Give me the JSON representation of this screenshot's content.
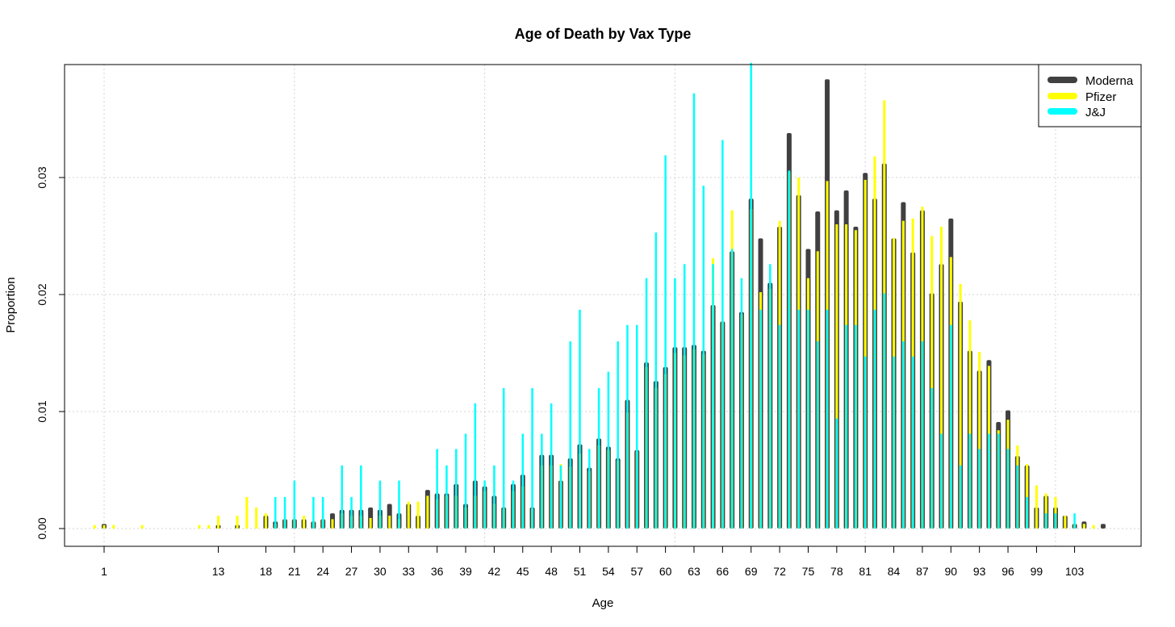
{
  "chart_data": {
    "type": "bar",
    "title": "Age of Death by  Vax Type",
    "xlabel": "Age",
    "ylabel": "Proportion",
    "ylim": [
      0.0,
      0.04
    ],
    "y_ticks": [
      0.0,
      0.01,
      0.02,
      0.03
    ],
    "y_tick_labels": [
      "0.00",
      "0.01",
      "0.02",
      "0.03"
    ],
    "x_tick_labels": [
      "1",
      "13",
      "18",
      "21",
      "24",
      "27",
      "30",
      "33",
      "36",
      "39",
      "42",
      "45",
      "48",
      "51",
      "54",
      "57",
      "60",
      "63",
      "66",
      "69",
      "72",
      "75",
      "78",
      "81",
      "84",
      "87",
      "90",
      "93",
      "96",
      "99",
      "103"
    ],
    "grid": true,
    "legend_position": "top-right",
    "series": [
      {
        "name": "Moderna",
        "color": "#404040",
        "points": [
          [
            1,
            0.0004
          ],
          [
            13,
            0.0003
          ],
          [
            15,
            0.0003
          ],
          [
            18,
            0.0011
          ],
          [
            19,
            0.0006
          ],
          [
            20,
            0.0008
          ],
          [
            21,
            0.0008
          ],
          [
            22,
            0.0008
          ],
          [
            23,
            0.0006
          ],
          [
            24,
            0.0008
          ],
          [
            25,
            0.0013
          ],
          [
            26,
            0.0016
          ],
          [
            27,
            0.0016
          ],
          [
            28,
            0.0016
          ],
          [
            29,
            0.0018
          ],
          [
            30,
            0.0016
          ],
          [
            31,
            0.0021
          ],
          [
            32,
            0.0013
          ],
          [
            33,
            0.0021
          ],
          [
            34,
            0.0011
          ],
          [
            35,
            0.0033
          ],
          [
            36,
            0.003
          ],
          [
            37,
            0.003
          ],
          [
            38,
            0.0038
          ],
          [
            39,
            0.0021
          ],
          [
            40,
            0.0041
          ],
          [
            41,
            0.0036
          ],
          [
            42,
            0.0028
          ],
          [
            43,
            0.0018
          ],
          [
            44,
            0.0038
          ],
          [
            45,
            0.0046
          ],
          [
            46,
            0.0018
          ],
          [
            47,
            0.0063
          ],
          [
            48,
            0.0063
          ],
          [
            49,
            0.0041
          ],
          [
            50,
            0.006
          ],
          [
            51,
            0.0072
          ],
          [
            52,
            0.0052
          ],
          [
            53,
            0.0077
          ],
          [
            54,
            0.007
          ],
          [
            55,
            0.006
          ],
          [
            56,
            0.011
          ],
          [
            57,
            0.0067
          ],
          [
            58,
            0.0142
          ],
          [
            59,
            0.0126
          ],
          [
            60,
            0.0138
          ],
          [
            61,
            0.0155
          ],
          [
            62,
            0.0155
          ],
          [
            63,
            0.0157
          ],
          [
            64,
            0.0152
          ],
          [
            65,
            0.0191
          ],
          [
            66,
            0.0177
          ],
          [
            67,
            0.0237
          ],
          [
            68,
            0.0185
          ],
          [
            69,
            0.0282
          ],
          [
            70,
            0.0248
          ],
          [
            71,
            0.021
          ],
          [
            72,
            0.0258
          ],
          [
            73,
            0.0338
          ],
          [
            74,
            0.0285
          ],
          [
            75,
            0.0239
          ],
          [
            76,
            0.0271
          ],
          [
            77,
            0.0384
          ],
          [
            78,
            0.0272
          ],
          [
            79,
            0.0289
          ],
          [
            80,
            0.0258
          ],
          [
            81,
            0.0304
          ],
          [
            82,
            0.0282
          ],
          [
            83,
            0.0312
          ],
          [
            84,
            0.0248
          ],
          [
            85,
            0.0279
          ],
          [
            86,
            0.0236
          ],
          [
            87,
            0.0272
          ],
          [
            88,
            0.0201
          ],
          [
            89,
            0.0226
          ],
          [
            90,
            0.0265
          ],
          [
            91,
            0.0194
          ],
          [
            92,
            0.0152
          ],
          [
            93,
            0.0135
          ],
          [
            94,
            0.0144
          ],
          [
            95,
            0.0091
          ],
          [
            96,
            0.0101
          ],
          [
            97,
            0.0062
          ],
          [
            98,
            0.0054
          ],
          [
            99,
            0.0018
          ],
          [
            100,
            0.0028
          ],
          [
            101,
            0.0018
          ],
          [
            102,
            0.0011
          ],
          [
            103,
            0.0004
          ],
          [
            104,
            0.0006
          ],
          [
            106,
            0.0004
          ]
        ]
      },
      {
        "name": "Pfizer",
        "color": "#ffff00",
        "points": [
          [
            0,
            0.0003
          ],
          [
            1,
            0.0003
          ],
          [
            2,
            0.0003
          ],
          [
            5,
            0.0003
          ],
          [
            11,
            0.0003
          ],
          [
            12,
            0.0003
          ],
          [
            13,
            0.0011
          ],
          [
            15,
            0.0011
          ],
          [
            16,
            0.0027
          ],
          [
            17,
            0.0018
          ],
          [
            18,
            0.0013
          ],
          [
            19,
            0.0004
          ],
          [
            20,
            0.0008
          ],
          [
            21,
            0.0008
          ],
          [
            22,
            0.0011
          ],
          [
            23,
            0.0006
          ],
          [
            24,
            0.0008
          ],
          [
            25,
            0.0008
          ],
          [
            26,
            0.0013
          ],
          [
            27,
            0.0011
          ],
          [
            28,
            0.0011
          ],
          [
            29,
            0.0009
          ],
          [
            30,
            0.0011
          ],
          [
            31,
            0.0011
          ],
          [
            32,
            0.0008
          ],
          [
            33,
            0.0023
          ],
          [
            34,
            0.0023
          ],
          [
            35,
            0.0028
          ],
          [
            36,
            0.0025
          ],
          [
            37,
            0.0028
          ],
          [
            38,
            0.0028
          ],
          [
            39,
            0.0018
          ],
          [
            40,
            0.0028
          ],
          [
            41,
            0.0032
          ],
          [
            42,
            0.0021
          ],
          [
            43,
            0.0017
          ],
          [
            44,
            0.0032
          ],
          [
            45,
            0.0036
          ],
          [
            46,
            0.0017
          ],
          [
            47,
            0.0054
          ],
          [
            48,
            0.0054
          ],
          [
            49,
            0.0055
          ],
          [
            50,
            0.0053
          ],
          [
            51,
            0.0064
          ],
          [
            52,
            0.0049
          ],
          [
            53,
            0.0071
          ],
          [
            54,
            0.0067
          ],
          [
            55,
            0.0058
          ],
          [
            56,
            0.0099
          ],
          [
            57,
            0.0066
          ],
          [
            58,
            0.0138
          ],
          [
            59,
            0.012
          ],
          [
            60,
            0.0132
          ],
          [
            61,
            0.015
          ],
          [
            62,
            0.0148
          ],
          [
            63,
            0.0153
          ],
          [
            64,
            0.0149
          ],
          [
            65,
            0.0231
          ],
          [
            66,
            0.0177
          ],
          [
            67,
            0.0272
          ],
          [
            68,
            0.0183
          ],
          [
            69,
            0.0273
          ],
          [
            70,
            0.0202
          ],
          [
            71,
            0.0205
          ],
          [
            72,
            0.0263
          ],
          [
            73,
            0.0305
          ],
          [
            74,
            0.03
          ],
          [
            75,
            0.0214
          ],
          [
            76,
            0.0237
          ],
          [
            77,
            0.0297
          ],
          [
            78,
            0.026
          ],
          [
            79,
            0.026
          ],
          [
            80,
            0.0255
          ],
          [
            81,
            0.0298
          ],
          [
            82,
            0.0318
          ],
          [
            83,
            0.0366
          ],
          [
            84,
            0.0248
          ],
          [
            85,
            0.0263
          ],
          [
            86,
            0.0265
          ],
          [
            87,
            0.0275
          ],
          [
            88,
            0.025
          ],
          [
            89,
            0.0258
          ],
          [
            90,
            0.0232
          ],
          [
            91,
            0.0209
          ],
          [
            92,
            0.0178
          ],
          [
            93,
            0.0151
          ],
          [
            94,
            0.0139
          ],
          [
            95,
            0.0084
          ],
          [
            96,
            0.0093
          ],
          [
            97,
            0.0071
          ],
          [
            98,
            0.0055
          ],
          [
            99,
            0.0037
          ],
          [
            100,
            0.003
          ],
          [
            101,
            0.0027
          ],
          [
            102,
            0.0011
          ],
          [
            103,
            0.0004
          ],
          [
            104,
            0.0004
          ],
          [
            105,
            0.0003
          ]
        ]
      },
      {
        "name": "J&J",
        "color": "#00ffff",
        "points": [
          [
            19,
            0.0027
          ],
          [
            20,
            0.0027
          ],
          [
            21,
            0.0041
          ],
          [
            23,
            0.0027
          ],
          [
            24,
            0.0027
          ],
          [
            26,
            0.0054
          ],
          [
            27,
            0.0027
          ],
          [
            28,
            0.0054
          ],
          [
            30,
            0.0041
          ],
          [
            32,
            0.0041
          ],
          [
            36,
            0.0068
          ],
          [
            37,
            0.0054
          ],
          [
            38,
            0.0068
          ],
          [
            39,
            0.0081
          ],
          [
            40,
            0.0107
          ],
          [
            41,
            0.0041
          ],
          [
            42,
            0.0054
          ],
          [
            43,
            0.012
          ],
          [
            44,
            0.0041
          ],
          [
            45,
            0.0081
          ],
          [
            46,
            0.012
          ],
          [
            47,
            0.0081
          ],
          [
            48,
            0.0107
          ],
          [
            49,
            0.0054
          ],
          [
            50,
            0.016
          ],
          [
            51,
            0.0187
          ],
          [
            52,
            0.0068
          ],
          [
            53,
            0.012
          ],
          [
            54,
            0.0134
          ],
          [
            55,
            0.016
          ],
          [
            56,
            0.0174
          ],
          [
            57,
            0.0174
          ],
          [
            58,
            0.0214
          ],
          [
            59,
            0.0253
          ],
          [
            60,
            0.0319
          ],
          [
            61,
            0.0214
          ],
          [
            62,
            0.0226
          ],
          [
            63,
            0.0372
          ],
          [
            64,
            0.0293
          ],
          [
            65,
            0.0226
          ],
          [
            66,
            0.0332
          ],
          [
            67,
            0.0239
          ],
          [
            68,
            0.0214
          ],
          [
            69,
            0.0398
          ],
          [
            70,
            0.0187
          ],
          [
            71,
            0.0226
          ],
          [
            72,
            0.0174
          ],
          [
            73,
            0.0306
          ],
          [
            74,
            0.0187
          ],
          [
            75,
            0.0187
          ],
          [
            76,
            0.016
          ],
          [
            77,
            0.0187
          ],
          [
            78,
            0.0094
          ],
          [
            79,
            0.0174
          ],
          [
            80,
            0.0174
          ],
          [
            81,
            0.0147
          ],
          [
            82,
            0.0187
          ],
          [
            83,
            0.0201
          ],
          [
            84,
            0.0147
          ],
          [
            85,
            0.016
          ],
          [
            86,
            0.0147
          ],
          [
            87,
            0.016
          ],
          [
            88,
            0.012
          ],
          [
            89,
            0.0081
          ],
          [
            90,
            0.0174
          ],
          [
            91,
            0.0054
          ],
          [
            92,
            0.0081
          ],
          [
            93,
            0.0068
          ],
          [
            94,
            0.0081
          ],
          [
            95,
            0.0081
          ],
          [
            96,
            0.0068
          ],
          [
            97,
            0.0054
          ],
          [
            98,
            0.0027
          ],
          [
            100,
            0.0013
          ],
          [
            101,
            0.0013
          ],
          [
            103,
            0.0013
          ]
        ]
      }
    ]
  }
}
